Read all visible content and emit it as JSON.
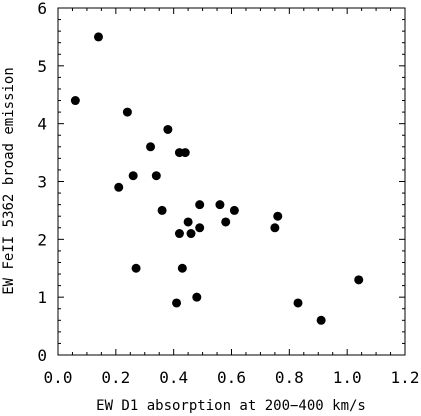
{
  "chart_data": {
    "type": "scatter",
    "title": "",
    "xlabel": "EW D1 absorption at 200−400 km/s",
    "ylabel": "EW FeII 5362 broad emission",
    "xlim": [
      0.0,
      1.2
    ],
    "ylim": [
      0,
      6
    ],
    "xticks": [
      0.0,
      0.2,
      0.4,
      0.6,
      0.8,
      1.0,
      1.2
    ],
    "xtick_labels": [
      "0.0",
      "0.2",
      "0.4",
      "0.6",
      "0.8",
      "1.0",
      "1.2"
    ],
    "yticks": [
      0,
      1,
      2,
      3,
      4,
      5,
      6
    ],
    "ytick_labels": [
      "0",
      "1",
      "2",
      "3",
      "4",
      "5",
      "6"
    ],
    "grid": false,
    "marker_color": "#000000",
    "points": [
      {
        "x": 0.06,
        "y": 4.4
      },
      {
        "x": 0.14,
        "y": 5.5
      },
      {
        "x": 0.21,
        "y": 2.9
      },
      {
        "x": 0.24,
        "y": 4.2
      },
      {
        "x": 0.26,
        "y": 3.1
      },
      {
        "x": 0.27,
        "y": 1.5
      },
      {
        "x": 0.32,
        "y": 3.6
      },
      {
        "x": 0.34,
        "y": 3.1
      },
      {
        "x": 0.36,
        "y": 2.5
      },
      {
        "x": 0.38,
        "y": 3.9
      },
      {
        "x": 0.41,
        "y": 0.9
      },
      {
        "x": 0.42,
        "y": 3.5
      },
      {
        "x": 0.42,
        "y": 2.1
      },
      {
        "x": 0.43,
        "y": 1.5
      },
      {
        "x": 0.44,
        "y": 3.5
      },
      {
        "x": 0.45,
        "y": 2.3
      },
      {
        "x": 0.46,
        "y": 2.1
      },
      {
        "x": 0.48,
        "y": 1.0
      },
      {
        "x": 0.49,
        "y": 2.6
      },
      {
        "x": 0.49,
        "y": 2.2
      },
      {
        "x": 0.56,
        "y": 2.6
      },
      {
        "x": 0.58,
        "y": 2.3
      },
      {
        "x": 0.61,
        "y": 2.5
      },
      {
        "x": 0.75,
        "y": 2.2
      },
      {
        "x": 0.76,
        "y": 2.4
      },
      {
        "x": 0.83,
        "y": 0.9
      },
      {
        "x": 0.91,
        "y": 0.6
      },
      {
        "x": 1.04,
        "y": 1.3
      }
    ]
  }
}
